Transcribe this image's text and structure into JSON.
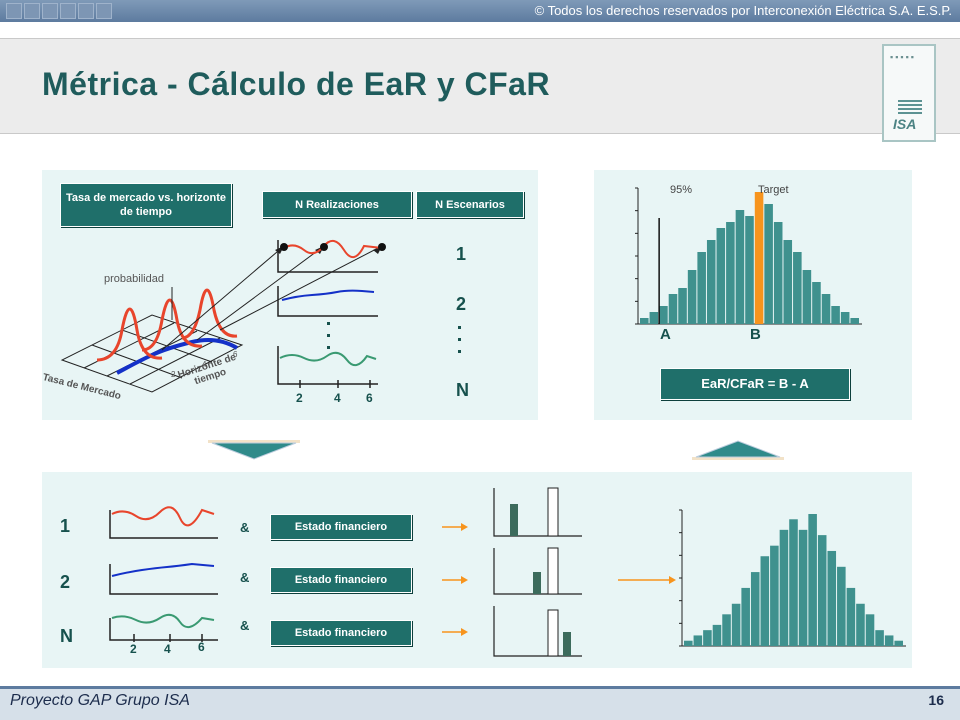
{
  "header": {
    "copyright": "© Todos los derechos reservados por Interconexión Eléctrica S.A. E.S.P."
  },
  "slide": {
    "title": "Métrica - Cálculo de EaR y CFaR",
    "logo_text": "ISA"
  },
  "top_left": {
    "box_tasa": "Tasa de mercado vs. horizonte de tiempo",
    "box_realizaciones": "N Realizaciones",
    "box_escenarios": "N Escenarios",
    "label_probabilidad": "probabilidad",
    "label_tasa_mercado": "Tasa de Mercado",
    "label_horizonte": "Horizonte de tiempo",
    "axis_ticks": [
      "2",
      "4",
      "6"
    ],
    "x_ticks": [
      "2",
      "4",
      "6"
    ],
    "scenario_labels": [
      "1",
      "2",
      "N"
    ],
    "dots": "."
  },
  "top_right": {
    "label_95": "95%",
    "label_target": "Target",
    "label_a": "A",
    "label_b": "B",
    "formula": "EaR/CFaR = B - A",
    "histogram": [
      1,
      2,
      3,
      5,
      6,
      9,
      12,
      14,
      16,
      17,
      19,
      18,
      22,
      20,
      17,
      14,
      12,
      9,
      7,
      5,
      3,
      2,
      1
    ],
    "highlight_index": 12
  },
  "bottom": {
    "row_labels": [
      "1",
      "2",
      "N"
    ],
    "ampersand": "&",
    "estado": "Estado financiero",
    "x_ticks": [
      "2",
      "4",
      "6"
    ],
    "histogram": [
      1,
      2,
      3,
      4,
      6,
      8,
      11,
      14,
      17,
      19,
      22,
      24,
      22,
      25,
      21,
      18,
      15,
      11,
      8,
      6,
      3,
      2,
      1
    ]
  },
  "footer": {
    "project": "Proyecto  GAP Grupo ISA",
    "page": "16"
  },
  "colors": {
    "teal": "#1f6f6a",
    "hist_teal": "#3f918e",
    "orange": "#f7941d",
    "red_curve": "#e8452c",
    "blue_curve": "#1431c8",
    "green_curve": "#3a9a72"
  }
}
